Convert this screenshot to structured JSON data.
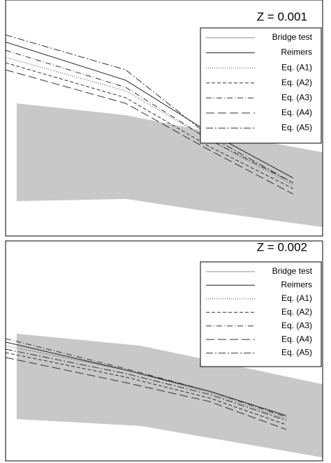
{
  "chart_data": [
    {
      "type": "line",
      "title": "Z = 0.001",
      "xlim": [
        0,
        100
      ],
      "ylim": [
        0,
        100
      ],
      "series": [
        {
          "name": "Bridge test",
          "kind": "band",
          "color": "#c8c8c8",
          "x": [
            3.5,
            38,
            60,
            100
          ],
          "values": [
            56.2,
            51.2,
            45.3,
            35.5
          ],
          "low": [
            14.8,
            15.7,
            11.2,
            3.8
          ]
        },
        {
          "name": "Reimers",
          "color": "#222",
          "dash": "none",
          "x": [
            0,
            37.9,
            64.3,
            90.7
          ],
          "values": [
            82.2,
            66,
            43.8,
            24.6
          ]
        },
        {
          "name": "Eq. (A1)",
          "color": "#444",
          "dash": "1,2",
          "x": [
            0,
            37.9,
            64.3,
            90.7
          ],
          "values": [
            75.7,
            61.5,
            40.8,
            21.6
          ]
        },
        {
          "name": "Eq. (A2)",
          "color": "#333",
          "dash": "5,3",
          "x": [
            0,
            37.9,
            64.3,
            90.7
          ],
          "values": [
            73.4,
            58.6,
            37.9,
            20.1
          ]
        },
        {
          "name": "Eq. (A3)",
          "color": "#333",
          "dash": "8,3,1,3",
          "x": [
            0,
            37.9,
            64.3,
            90.7
          ],
          "values": [
            78.7,
            63,
            40.8,
            22.5
          ]
        },
        {
          "name": "Eq. (A4)",
          "color": "#333",
          "dash": "12,5",
          "x": [
            0,
            37.9,
            64.3,
            90.7
          ],
          "values": [
            70.4,
            56.2,
            36.4,
            17.8
          ]
        },
        {
          "name": "Eq. (A5)",
          "color": "#333",
          "dash": "10,3,2,3",
          "x": [
            0,
            37.9,
            64.3,
            90.7
          ],
          "values": [
            85.2,
            70.4,
            42.3,
            22.5
          ]
        }
      ]
    },
    {
      "type": "line",
      "title": "Z = 0.002",
      "xlim": [
        0,
        100
      ],
      "ylim": [
        0,
        100
      ],
      "series": [
        {
          "name": "Bridge test",
          "kind": "band",
          "color": "#c8c8c8",
          "x": [
            3.5,
            42.5,
            100
          ],
          "values": [
            57.8,
            52.4,
            34.9
          ],
          "low": [
            19,
            15.9,
            1.6
          ]
        },
        {
          "name": "Reimers",
          "color": "#222",
          "dash": "none",
          "x": [
            0,
            37.9,
            64.3,
            88.5
          ],
          "values": [
            54,
            41.3,
            31.7,
            20.6
          ]
        },
        {
          "name": "Eq. (A1)",
          "color": "#444",
          "dash": "1,2",
          "x": [
            0,
            37.9,
            64.3,
            88.5
          ],
          "values": [
            52.4,
            41.3,
            31.1,
            19
          ]
        },
        {
          "name": "Eq. (A2)",
          "color": "#333",
          "dash": "5,3",
          "x": [
            0,
            37.9,
            64.3,
            88.5
          ],
          "values": [
            49.2,
            38.1,
            28.6,
            16.5
          ]
        },
        {
          "name": "Eq. (A3)",
          "color": "#333",
          "dash": "8,3,1,3",
          "x": [
            0,
            37.9,
            64.3,
            88.5
          ],
          "values": [
            55.6,
            41.9,
            31.7,
            20
          ]
        },
        {
          "name": "Eq. (A4)",
          "color": "#333",
          "dash": "12,5",
          "x": [
            0,
            37.9,
            64.3,
            88.5
          ],
          "values": [
            47,
            35.6,
            27,
            14.3
          ]
        },
        {
          "name": "Eq. (A5)",
          "color": "#333",
          "dash": "10,3,2,3",
          "x": [
            0,
            37.9,
            64.3,
            88.5
          ],
          "values": [
            50.8,
            39.7,
            30.2,
            18.4
          ]
        }
      ]
    }
  ]
}
